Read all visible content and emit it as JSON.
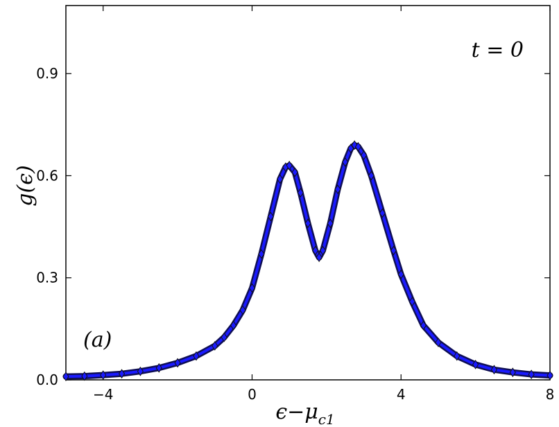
{
  "chart_data": {
    "type": "scatter",
    "xlabel_parts": {
      "main": "ϵ−μ",
      "sub": "c1"
    },
    "ylabel": "g(ϵ)",
    "xlim": [
      -5,
      8
    ],
    "ylim": [
      0,
      1.1
    ],
    "xticks": [
      -4,
      0,
      4,
      8
    ],
    "xtick_labels": [
      "−4",
      "0",
      "4",
      "8"
    ],
    "yticks": [
      0.0,
      0.3,
      0.6,
      0.9
    ],
    "ytick_labels": [
      "0.0",
      "0.3",
      "0.6",
      "0.9"
    ],
    "annotations": {
      "top_right": "t = 0",
      "bottom_left": "(a)"
    },
    "marker": {
      "shape": "diamond",
      "fill": "#1a1aff",
      "edge": "#111111"
    },
    "grid": false,
    "series": [
      {
        "x": [
          -5.0,
          -4.5,
          -4.0,
          -3.5,
          -3.0,
          -2.5,
          -2.0,
          -1.5,
          -1.0,
          -0.75,
          -0.5,
          -0.25,
          0.0,
          0.25,
          0.5,
          0.75,
          0.9,
          1.0,
          1.15,
          1.3,
          1.5,
          1.7,
          1.8,
          1.9,
          2.1,
          2.3,
          2.5,
          2.65,
          2.75,
          2.85,
          3.0,
          3.2,
          3.5,
          3.8,
          4.0,
          4.3,
          4.6,
          5.0,
          5.5,
          6.0,
          6.5,
          7.0,
          7.5,
          8.0
        ],
        "y": [
          0.01,
          0.011,
          0.014,
          0.018,
          0.025,
          0.035,
          0.05,
          0.07,
          0.1,
          0.125,
          0.16,
          0.205,
          0.27,
          0.37,
          0.48,
          0.59,
          0.625,
          0.63,
          0.61,
          0.55,
          0.46,
          0.38,
          0.36,
          0.38,
          0.46,
          0.56,
          0.64,
          0.68,
          0.69,
          0.685,
          0.66,
          0.6,
          0.49,
          0.38,
          0.31,
          0.23,
          0.16,
          0.11,
          0.07,
          0.045,
          0.03,
          0.022,
          0.016,
          0.013
        ]
      }
    ]
  }
}
